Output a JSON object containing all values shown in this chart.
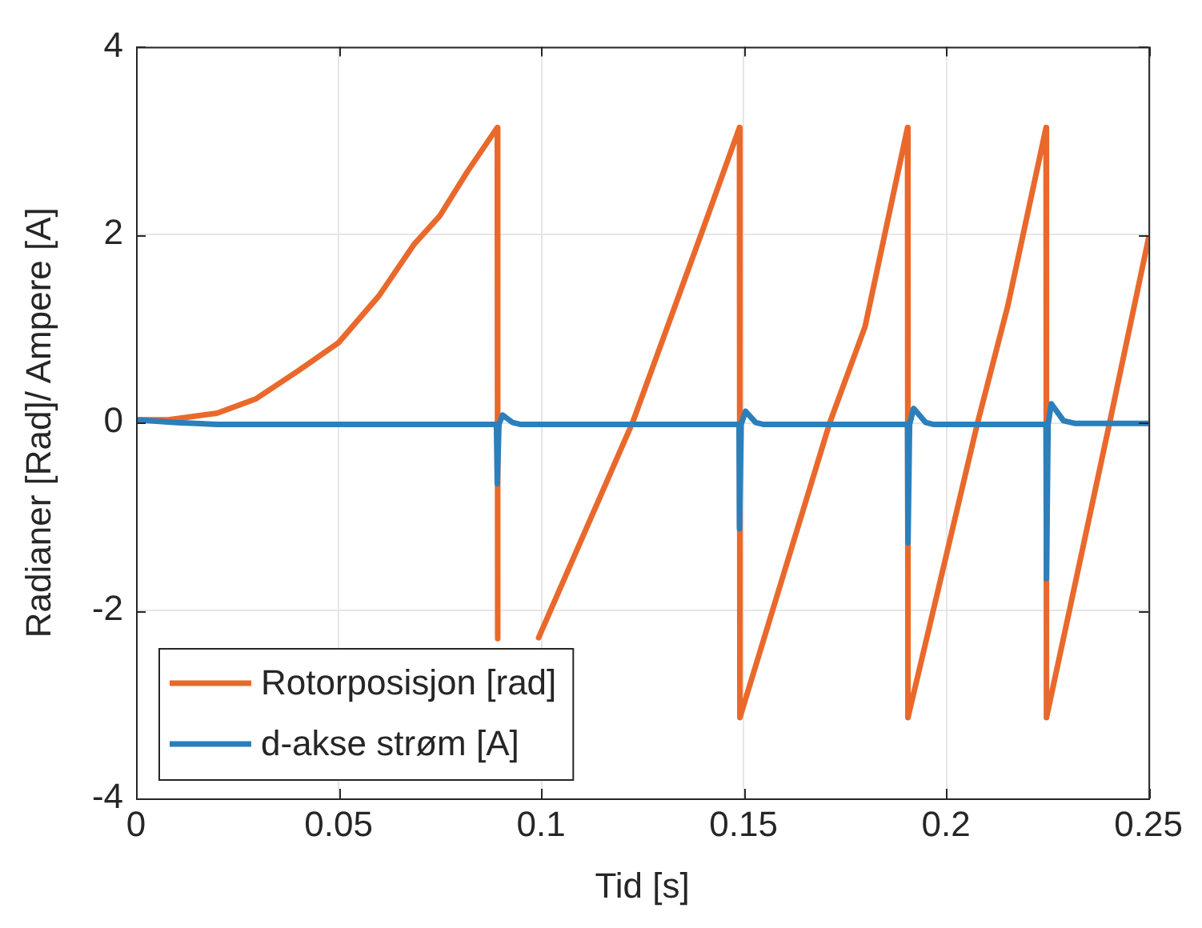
{
  "chart_data": {
    "type": "line",
    "xlabel": "Tid [s]",
    "ylabel": "Radianer [Rad]/ Ampere [A]",
    "xlim": [
      0,
      0.25
    ],
    "ylim": [
      -4,
      4
    ],
    "xticks": [
      0,
      0.05,
      0.1,
      0.15,
      0.2,
      0.25
    ],
    "yticks": [
      -4,
      -2,
      0,
      2,
      4
    ],
    "grid": true,
    "legend": "bottom left",
    "marker": "none",
    "line_style": "solid",
    "series": [
      {
        "name": "Rotorposisjon [rad]",
        "color": "#e9692c",
        "x": [
          0,
          0.008,
          0.02,
          0.0295,
          0.04,
          0.05,
          0.06,
          0.0687,
          0.075,
          0.0818,
          0.0892,
          0.0893,
          0.0894,
          0.0994,
          0.1226,
          0.1395,
          0.149,
          0.1491,
          0.1713,
          0.18,
          0.1905,
          0.1906,
          0.2078,
          0.2153,
          0.2247,
          0.2248,
          0.2404,
          0.25
        ],
        "values": [
          0.03,
          0.03,
          0.1,
          0.25,
          0.55,
          0.85,
          1.35,
          1.9,
          2.2,
          2.67,
          3.14,
          -2.3,
          null,
          -2.29,
          0,
          2,
          3.14,
          -3.14,
          0,
          1.02,
          3.14,
          -3.14,
          0,
          1.25,
          3.14,
          -3.14,
          0,
          1.96
        ]
      },
      {
        "name": "d-akse strøm [A]",
        "color": "#2b7fbb",
        "x": [
          0,
          0.01,
          0.02,
          0.089,
          0.0892,
          0.0896,
          0.0905,
          0.093,
          0.095,
          0.1489,
          0.149,
          0.1494,
          0.1505,
          0.153,
          0.155,
          0.1905,
          0.1906,
          0.191,
          0.192,
          0.195,
          0.197,
          0.2247,
          0.2248,
          0.2252,
          0.226,
          0.229,
          0.232,
          0.25
        ],
        "values": [
          0.03,
          0,
          -0.02,
          -0.02,
          -0.65,
          -0.02,
          0.08,
          0,
          -0.02,
          -0.02,
          -1.13,
          -0.02,
          0.12,
          0,
          -0.02,
          -0.02,
          -1.28,
          -0.02,
          0.15,
          0,
          -0.02,
          -0.02,
          -1.66,
          -0.02,
          0.2,
          0.02,
          -0.01,
          -0.01
        ]
      }
    ]
  }
}
